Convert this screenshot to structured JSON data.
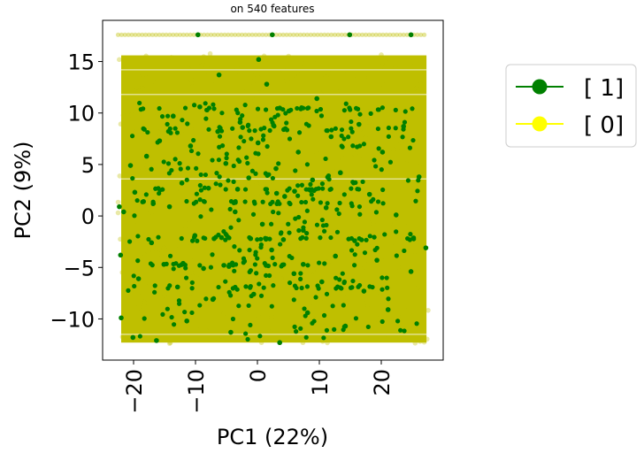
{
  "chart_data": {
    "type": "scatter",
    "title": "on 540 features",
    "xlabel": "PC1 (22%)",
    "ylabel": "PC2 (9%)",
    "xlim": [
      -25,
      30
    ],
    "ylim": [
      -14,
      19
    ],
    "xticks": [
      -20,
      -10,
      0,
      10,
      20
    ],
    "xtick_labels": [
      "−20",
      "−10",
      "0",
      "10",
      "20"
    ],
    "yticks": [
      -10,
      -5,
      0,
      5,
      10,
      15
    ],
    "ytick_labels": [
      "−10",
      "−5",
      "0",
      "5",
      "10",
      "15"
    ],
    "grid": false,
    "legend_position": "outside-right",
    "series": [
      {
        "name": "[ 1]",
        "color": "#008000",
        "marker": "circle",
        "approx_points": [
          [
            -22.3,
            0.9
          ],
          [
            -22.1,
            -3.8
          ],
          [
            -22.0,
            -9.9
          ],
          [
            -21.6,
            0.4
          ],
          [
            -20.5,
            4.9
          ],
          [
            -20.1,
            -11.8
          ],
          [
            -19.8,
            2.3
          ],
          [
            -19.2,
            -6.1
          ],
          [
            -18.4,
            1.4
          ],
          [
            -17.9,
            5.8
          ],
          [
            -17.1,
            -2.6
          ],
          [
            -16.3,
            -12.1
          ],
          [
            -15.8,
            7.3
          ],
          [
            -15.1,
            -4.7
          ],
          [
            -14.2,
            0.9
          ],
          [
            -13.6,
            9.7
          ],
          [
            -12.9,
            -6.9
          ],
          [
            -12.2,
            3.2
          ],
          [
            -11.4,
            -10.2
          ],
          [
            -10.8,
            6.8
          ],
          [
            -10.1,
            -1.9
          ],
          [
            -9.3,
            10.6
          ],
          [
            -8.7,
            -5.1
          ],
          [
            -7.9,
            2.7
          ],
          [
            -7.2,
            -8.1
          ],
          [
            -6.4,
            8.2
          ],
          [
            -5.8,
            -2.1
          ],
          [
            -5.1,
            5.1
          ],
          [
            -4.3,
            -11.3
          ],
          [
            -3.6,
            0.4
          ],
          [
            -2.8,
            9.1
          ],
          [
            -2.1,
            -4.4
          ],
          [
            -1.4,
            3.7
          ],
          [
            -0.6,
            -7.6
          ],
          [
            0.1,
            7.1
          ],
          [
            0.8,
            -0.8
          ],
          [
            1.5,
            12.8
          ],
          [
            2.3,
            -3.3
          ],
          [
            3.0,
            4.6
          ],
          [
            3.6,
            -12.3
          ],
          [
            4.4,
            1.9
          ],
          [
            5.1,
            10.2
          ],
          [
            5.9,
            -5.6
          ],
          [
            6.6,
            6.2
          ],
          [
            7.4,
            -1.4
          ],
          [
            8.1,
            -9.4
          ],
          [
            8.9,
            3.5
          ],
          [
            9.6,
            11.4
          ],
          [
            10.4,
            -6.4
          ],
          [
            11.1,
            0.8
          ],
          [
            11.9,
            7.7
          ],
          [
            12.6,
            -3.9
          ],
          [
            13.4,
            4.2
          ],
          [
            14.2,
            -10.7
          ],
          [
            14.9,
            17.6
          ],
          [
            15.7,
            -2.4
          ],
          [
            16.4,
            8.9
          ],
          [
            17.2,
            -7.3
          ],
          [
            18.1,
            2.1
          ],
          [
            19.3,
            -4.3
          ],
          [
            20.2,
            6.2
          ],
          [
            21.1,
            -9.1
          ],
          [
            22.4,
            0.1
          ],
          [
            23.6,
            8.7
          ],
          [
            24.8,
            -5.4
          ],
          [
            26.1,
            3.8
          ],
          [
            27.2,
            -3.1
          ],
          [
            -9.6,
            17.6
          ],
          [
            2.4,
            17.6
          ],
          [
            24.8,
            17.6
          ],
          [
            0.2,
            15.2
          ],
          [
            -6.2,
            13.7
          ],
          [
            3.1,
            2.2
          ],
          [
            -3.2,
            2.6
          ],
          [
            6.0,
            2.4
          ],
          [
            -1.1,
            -2.2
          ],
          [
            4.2,
            -2.3
          ],
          [
            -7.0,
            -2.2
          ],
          [
            1.4,
            -4.8
          ],
          [
            -4.6,
            -4.9
          ],
          [
            7.4,
            -4.7
          ],
          [
            -2.4,
            8.6
          ],
          [
            2.6,
            8.8
          ],
          [
            -12.0,
            -4.6
          ]
        ]
      },
      {
        "name": "[ 0]",
        "color": "#ffff00",
        "plotted_color": "#bfbf00",
        "marker": "circle",
        "density": "dense cloud filling roughly x −22 to 27 and y −12 to 15.5, plus a row at y ≈ 17.6"
      }
    ]
  },
  "legend": {
    "entries": [
      {
        "label": "[ 1]",
        "color": "#008000"
      },
      {
        "label": "[ 0]",
        "color": "#ffff00"
      }
    ]
  }
}
